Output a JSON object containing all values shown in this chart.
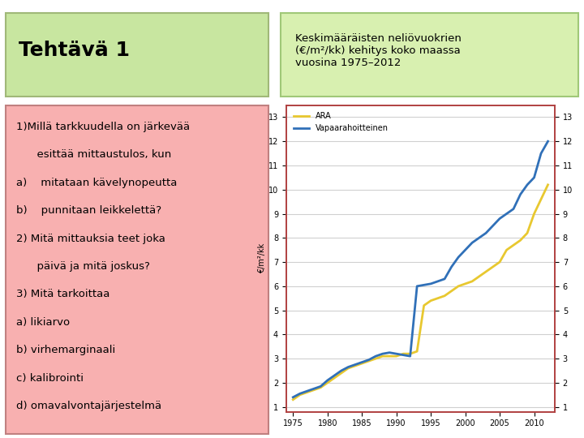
{
  "title_text": "Tehtävä 1",
  "title_bg": "#c8e6a0",
  "title_border": "#a0b878",
  "right_title_text": "Keskimääräisten neliövuokrien\n(€/m²/kk) kehitys koko maassa\nvuosina 1975–2012",
  "right_title_bg": "#d8f0b0",
  "right_title_border": "#a0c878",
  "left_box_bg": "#f8b0b0",
  "left_box_border": "#c08080",
  "main_bg": "#ffffff",
  "left_lines": [
    "1)Millä tarkkuudella on järkevää",
    "      esittää mittaustulos, kun",
    "a)    mitataan kävelynopeutta",
    "b)    punnitaan leikkelettä?",
    "2) Mitä mittauksia teet joka",
    "      päivä ja mitä joskus?",
    "3) Mitä tarkoittaa",
    "a) likiarvo",
    "b) virhemarginaali",
    "c) kalibrointi",
    "d) omavalvontajärjestelmä"
  ],
  "chart_ylabel": "€/m²/kk",
  "chart_yticks": [
    1,
    2,
    3,
    4,
    5,
    6,
    7,
    8,
    9,
    10,
    11,
    12,
    13
  ],
  "chart_xticks": [
    1975,
    1980,
    1985,
    1990,
    1995,
    2000,
    2005,
    2010
  ],
  "chart_ylim": [
    0.8,
    13.5
  ],
  "chart_xlim": [
    1974,
    2013
  ],
  "chart_bg": "#ffffff",
  "chart_grid_color": "#d0d0d0",
  "ara_color": "#e8c830",
  "vapaa_color": "#3070b8",
  "legend_entries": [
    "ARA",
    "Vapaarahoitteinen"
  ],
  "ara_data_x": [
    1975,
    1976,
    1977,
    1978,
    1979,
    1980,
    1981,
    1982,
    1983,
    1984,
    1985,
    1986,
    1987,
    1988,
    1989,
    1990,
    1991,
    1992,
    1993,
    1994,
    1995,
    1996,
    1997,
    1998,
    1999,
    2000,
    2001,
    2002,
    2003,
    2004,
    2005,
    2006,
    2007,
    2008,
    2009,
    2010,
    2011,
    2012
  ],
  "ara_data_y": [
    1.3,
    1.5,
    1.6,
    1.7,
    1.8,
    2.0,
    2.2,
    2.4,
    2.6,
    2.7,
    2.8,
    2.9,
    3.0,
    3.1,
    3.1,
    3.1,
    3.2,
    3.2,
    3.3,
    5.2,
    5.4,
    5.5,
    5.6,
    5.8,
    6.0,
    6.1,
    6.2,
    6.4,
    6.6,
    6.8,
    7.0,
    7.5,
    7.7,
    7.9,
    8.2,
    9.0,
    9.6,
    10.2
  ],
  "vapaa_data_x": [
    1975,
    1976,
    1977,
    1978,
    1979,
    1980,
    1981,
    1982,
    1983,
    1984,
    1985,
    1986,
    1987,
    1988,
    1989,
    1990,
    1991,
    1992,
    1993,
    1994,
    1995,
    1996,
    1997,
    1998,
    1999,
    2000,
    2001,
    2002,
    2003,
    2004,
    2005,
    2006,
    2007,
    2008,
    2009,
    2010,
    2011,
    2012
  ],
  "vapaa_data_y": [
    1.4,
    1.55,
    1.65,
    1.75,
    1.85,
    2.1,
    2.3,
    2.5,
    2.65,
    2.75,
    2.85,
    2.95,
    3.1,
    3.2,
    3.25,
    3.2,
    3.15,
    3.1,
    6.0,
    6.05,
    6.1,
    6.2,
    6.3,
    6.8,
    7.2,
    7.5,
    7.8,
    8.0,
    8.2,
    8.5,
    8.8,
    9.0,
    9.2,
    9.8,
    10.2,
    10.5,
    11.5,
    12.0
  ]
}
